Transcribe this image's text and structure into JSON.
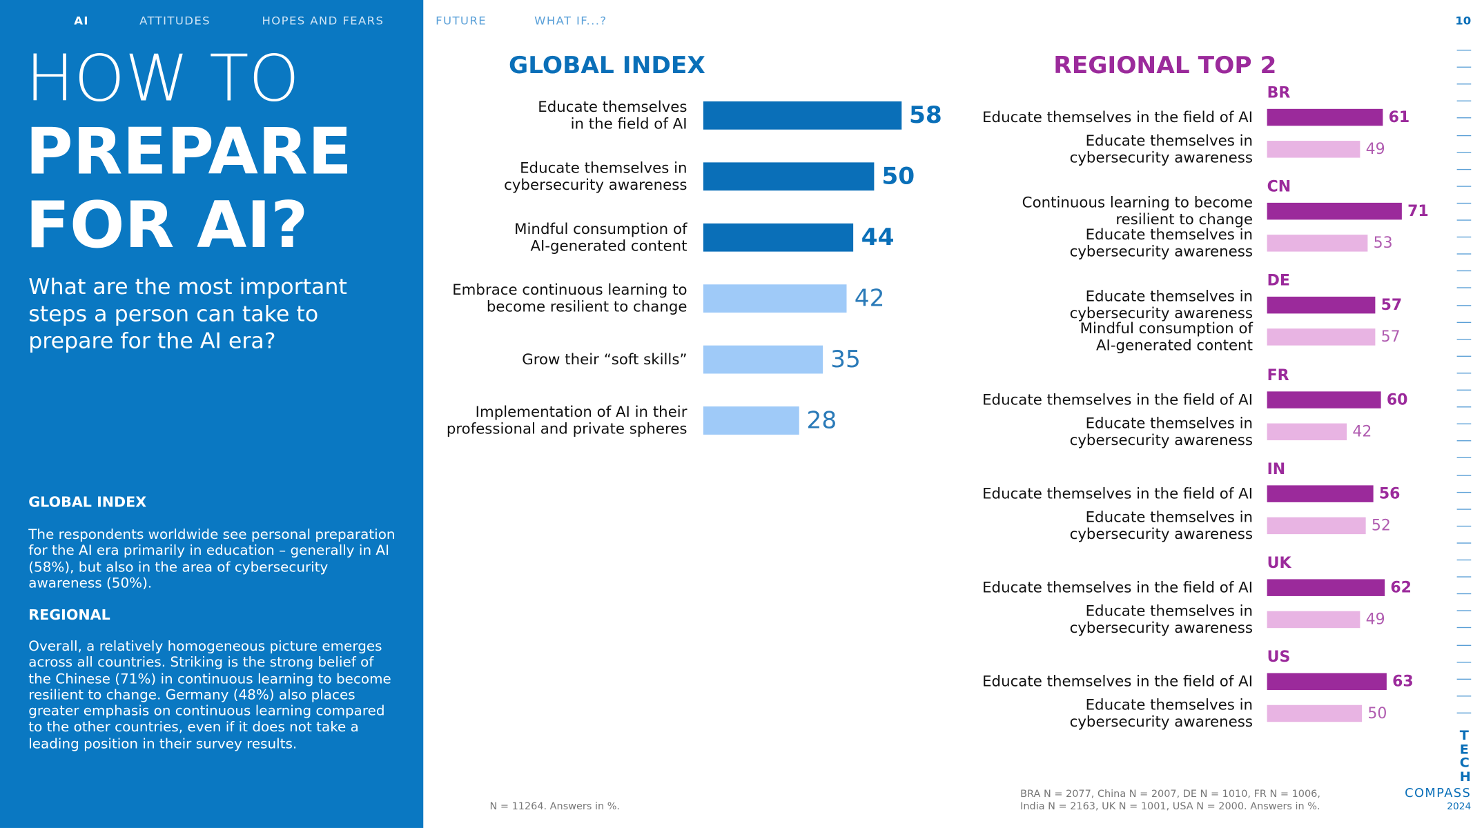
{
  "nav": {
    "items": [
      "AI",
      "ATTITUDES",
      "HOPES AND FEARS",
      "FUTURE",
      "WHAT IF...?"
    ],
    "page": "10"
  },
  "sidebar": {
    "title": [
      "HOW TO",
      "PREPARE",
      "FOR AI?"
    ],
    "subtitle": "What are the most important steps a person can take to prepare for the AI era?",
    "sections": [
      {
        "heading": "GLOBAL INDEX",
        "text": "The respondents worldwide see personal preparation for the AI era primarily in education – generally in AI (58%), but also in the area of cybersecurity awareness (50%)."
      },
      {
        "heading": "REGIONAL",
        "text": "Overall, a relatively homogeneous picture emerges across all countries. Striking is the strong belief of the Chinese (71%) in continuous learning to become resilient to change. Germany (48%) also places greater emphasis on continuous learning compared to the other countries, even if it does not take a leading position in their survey results."
      }
    ]
  },
  "chart_data": [
    {
      "type": "bar",
      "title": "GLOBAL INDEX",
      "categories": [
        "Educate themselves\nin the field of AI",
        "Educate themselves in\ncybersecurity awareness",
        "Mindful consumption of\nAI-generated content",
        "Embrace continuous learning to\nbecome resilient to change",
        "Grow their “soft skills”",
        "Implementation of AI in their\nprofessional and private spheres"
      ],
      "values": [
        58,
        50,
        44,
        42,
        35,
        28
      ],
      "colors": [
        "#0a6fb8",
        "#0a6fb8",
        "#0a6fb8",
        "#9fcaf8",
        "#9fcaf8",
        "#9fcaf8"
      ],
      "note": "N = 11264. Answers in %."
    },
    {
      "type": "grouped-bar",
      "title": "REGIONAL TOP 2",
      "colors": [
        "#9b2a9b",
        "#e8b4e3"
      ],
      "groups": [
        {
          "name": "BR",
          "categories": [
            "Educate themselves in the field of AI",
            "Educate themselves in\ncybersecurity awareness"
          ],
          "values": [
            61,
            49
          ]
        },
        {
          "name": "CN",
          "categories": [
            "Continuous learning to become\nresilient to change",
            "Educate themselves in\ncybersecurity awareness"
          ],
          "values": [
            71,
            53
          ]
        },
        {
          "name": "DE",
          "categories": [
            "Educate themselves in\ncybersecurity awareness",
            "Mindful consumption of\nAI-generated content"
          ],
          "values": [
            57,
            57
          ]
        },
        {
          "name": "FR",
          "categories": [
            "Educate themselves in the field of AI",
            "Educate themselves in\ncybersecurity awareness"
          ],
          "values": [
            60,
            42
          ]
        },
        {
          "name": "IN",
          "categories": [
            "Educate themselves in the field of AI",
            "Educate themselves in\ncybersecurity awareness"
          ],
          "values": [
            56,
            52
          ]
        },
        {
          "name": "UK",
          "categories": [
            "Educate themselves in the field of AI",
            "Educate themselves in\ncybersecurity awareness"
          ],
          "values": [
            62,
            49
          ]
        },
        {
          "name": "US",
          "categories": [
            "Educate themselves in the field of AI",
            "Educate themselves in\ncybersecurity awareness"
          ],
          "values": [
            63,
            50
          ]
        }
      ],
      "note": "BRA N = 2077, China N = 2007, DE N = 1010, FR N = 1006,\nIndia N = 2163, UK N = 1001, USA N = 2000. Answers in %."
    }
  ],
  "logo": {
    "letters": "TECH",
    "name": "COMPASS",
    "year": "2024"
  }
}
